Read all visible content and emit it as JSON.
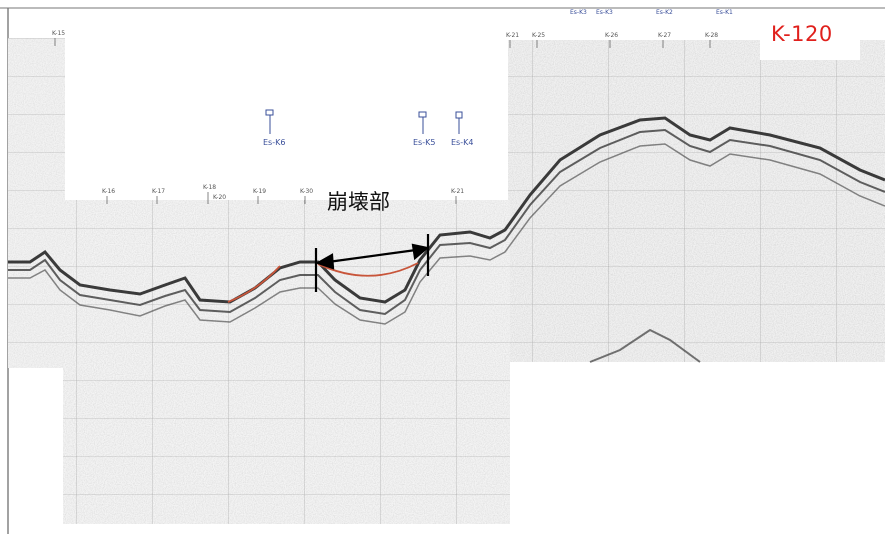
{
  "profile_label": "K-120",
  "annotation": "崩壊部",
  "top_markers": [
    "K-15",
    "K-21",
    "K-25",
    "K-26",
    "K-27",
    "K-28",
    "Es-K3",
    "Es-K3",
    "Es-K2",
    "Es-K1"
  ],
  "mid_markers": [
    "K-16",
    "K-17",
    "K-18",
    "K-20",
    "K-19",
    "K-30",
    "K-21"
  ],
  "station_labels": [
    "Es-K6",
    "Es-K5",
    "Es-K4"
  ],
  "colors": {
    "profile_label": "#e0201c",
    "collapse_trace": "#c8553a",
    "station_label": "#3a4f9a",
    "arrow": "#000000"
  }
}
